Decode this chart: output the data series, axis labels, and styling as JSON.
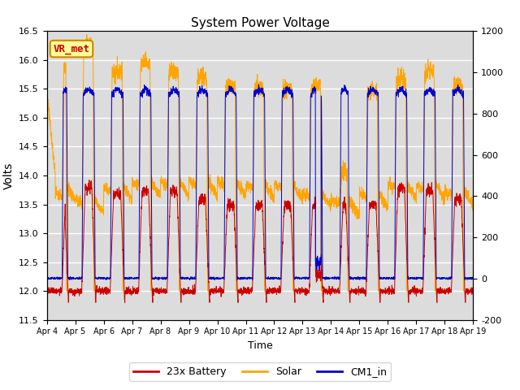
{
  "title": "System Power Voltage",
  "xlabel": "Time",
  "ylabel": "Volts",
  "ylim_left": [
    11.5,
    16.5
  ],
  "ylim_right": [
    -200,
    1200
  ],
  "x_tick_labels": [
    "Apr 4",
    "Apr 5",
    "Apr 6",
    "Apr 7",
    "Apr 8",
    "Apr 9",
    "Apr 10",
    "Apr 11",
    "Apr 12",
    "Apr 13",
    "Apr 14",
    "Apr 15",
    "Apr 16",
    "Apr 17",
    "Apr 18",
    "Apr 19"
  ],
  "x_tick_positions": [
    0,
    1,
    2,
    3,
    4,
    5,
    6,
    7,
    8,
    9,
    10,
    11,
    12,
    13,
    14,
    15
  ],
  "y_left_ticks": [
    11.5,
    12.0,
    12.5,
    13.0,
    13.5,
    14.0,
    14.5,
    15.0,
    15.5,
    16.0,
    16.5
  ],
  "y_right_ticks": [
    -200,
    0,
    200,
    400,
    600,
    800,
    1000,
    1200
  ],
  "colors": {
    "battery": "#cc0000",
    "solar": "#ffa500",
    "cm1": "#0000cc",
    "background": "#dcdcdc",
    "grid": "#ffffff"
  },
  "annotation": {
    "text": "VR_met",
    "facecolor": "#ffff99",
    "edgecolor": "#cc8800",
    "textcolor": "#cc0000",
    "fontsize": 9
  },
  "legend": {
    "entries": [
      "23x Battery",
      "Solar",
      "CM1_in"
    ],
    "colors": [
      "#cc0000",
      "#ffa500",
      "#0000cc"
    ]
  },
  "figsize": [
    6.4,
    4.8
  ],
  "dpi": 100
}
